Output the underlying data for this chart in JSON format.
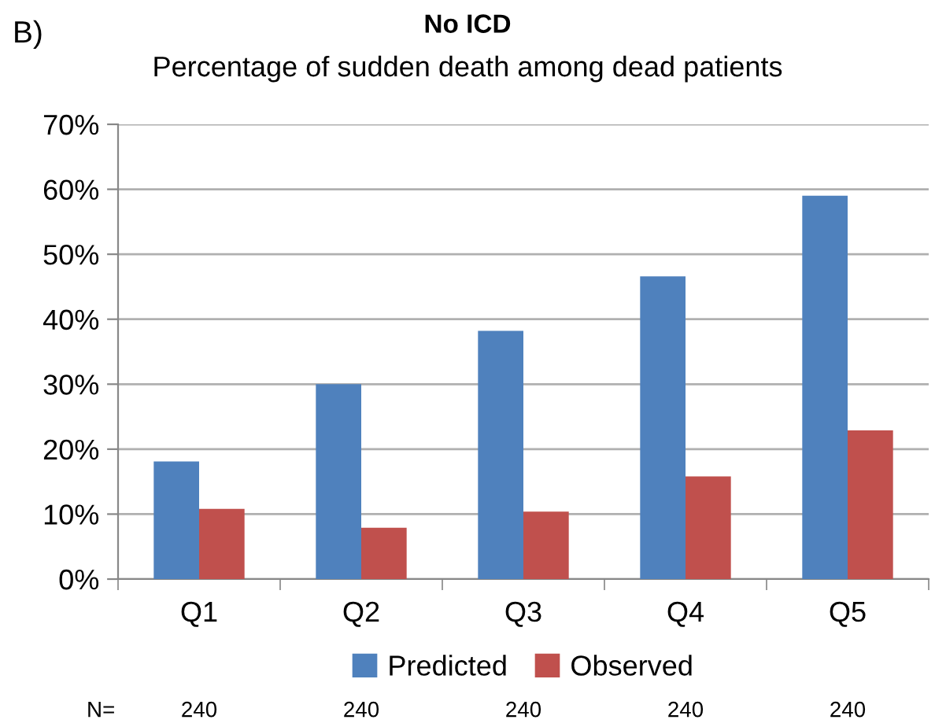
{
  "chart_data": {
    "type": "bar",
    "title": "No ICD",
    "subtitle": "Percentage of sudden death among dead patients",
    "categories": [
      "Q1",
      "Q2",
      "Q3",
      "Q4",
      "Q5"
    ],
    "series": [
      {
        "name": "Predicted",
        "color": "#4f81bd",
        "values": [
          18.1,
          30.0,
          38.2,
          46.6,
          59.0
        ]
      },
      {
        "name": "Observed",
        "color": "#c0504d",
        "values": [
          10.8,
          7.9,
          10.4,
          15.8,
          22.9
        ]
      }
    ],
    "ylim": [
      0,
      70
    ],
    "yticks": [
      {
        "value": 0,
        "label": "0%"
      },
      {
        "value": 10,
        "label": "10%"
      },
      {
        "value": 20,
        "label": "20%"
      },
      {
        "value": 30,
        "label": "30%"
      },
      {
        "value": 40,
        "label": "40%"
      },
      {
        "value": 50,
        "label": "50%"
      },
      {
        "value": 60,
        "label": "60%"
      },
      {
        "value": 70,
        "label": "70%"
      }
    ],
    "grid": "y",
    "legend": "bottom",
    "annotations": [
      "B)",
      "N=",
      "240",
      "240",
      "240",
      "240",
      "240"
    ]
  }
}
